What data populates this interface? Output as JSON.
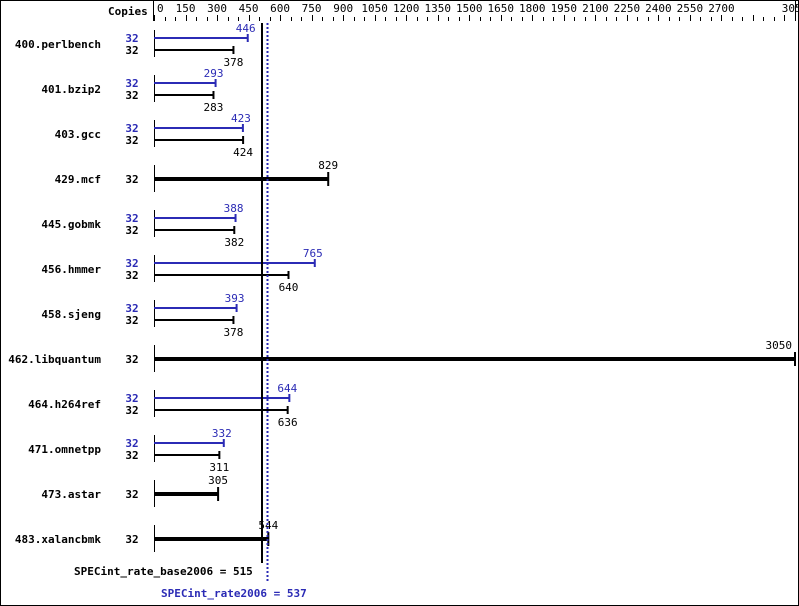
{
  "chart_data": {
    "type": "bar",
    "orientation": "horizontal",
    "axis": {
      "header": "Copies",
      "ticks": [
        0,
        150,
        300,
        450,
        600,
        750,
        900,
        1050,
        1200,
        1350,
        1500,
        1650,
        1800,
        1950,
        2100,
        2250,
        2400,
        2550,
        2700,
        3050
      ],
      "xlim": [
        0,
        3050
      ],
      "minor_step": 50
    },
    "colors": {
      "base": "#000000",
      "peak": "#2b2bb5"
    },
    "benchmarks": [
      {
        "name": "400.perlbench",
        "copies_peak": "32",
        "copies_base": "32",
        "peak": 446,
        "base": 378
      },
      {
        "name": "401.bzip2",
        "copies_peak": "32",
        "copies_base": "32",
        "peak": 293,
        "base": 283
      },
      {
        "name": "403.gcc",
        "copies_peak": "32",
        "copies_base": "32",
        "peak": 423,
        "base": 424
      },
      {
        "name": "429.mcf",
        "copies_base": "32",
        "base": 829
      },
      {
        "name": "445.gobmk",
        "copies_peak": "32",
        "copies_base": "32",
        "peak": 388,
        "base": 382
      },
      {
        "name": "456.hmmer",
        "copies_peak": "32",
        "copies_base": "32",
        "peak": 765,
        "base": 640
      },
      {
        "name": "458.sjeng",
        "copies_peak": "32",
        "copies_base": "32",
        "peak": 393,
        "base": 378
      },
      {
        "name": "462.libquantum",
        "copies_base": "32",
        "base": 3050
      },
      {
        "name": "464.h264ref",
        "copies_peak": "32",
        "copies_base": "32",
        "peak": 644,
        "base": 636
      },
      {
        "name": "471.omnetpp",
        "copies_peak": "32",
        "copies_base": "32",
        "peak": 332,
        "base": 311
      },
      {
        "name": "473.astar",
        "copies_base": "32",
        "base": 305
      },
      {
        "name": "483.xalancbmk",
        "copies_base": "32",
        "base": 544
      }
    ],
    "summary": {
      "base_label": "SPECint_rate_base2006 = 515",
      "base_value": 515,
      "peak_label": "SPECint_rate2006 = 537",
      "peak_value": 537
    }
  }
}
